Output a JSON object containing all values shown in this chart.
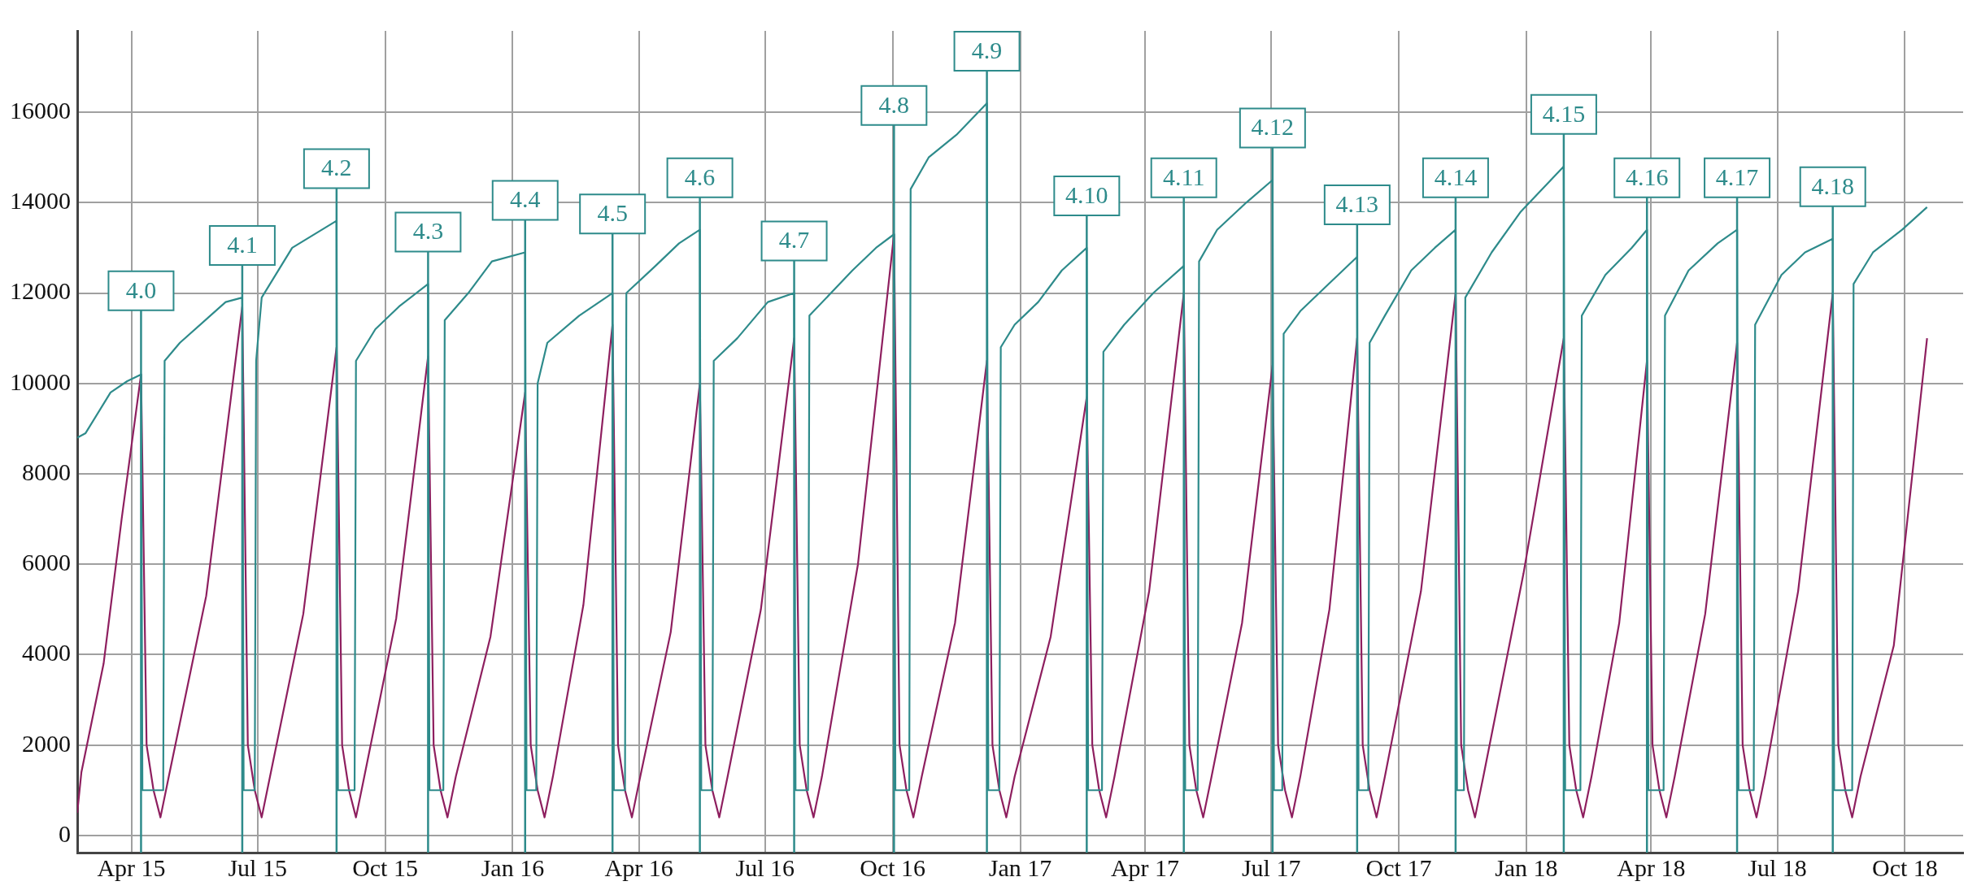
{
  "chart_data": {
    "type": "line",
    "xlim": [
      "2015-02-21",
      "2018-11-12"
    ],
    "ylim": [
      -380,
      17800
    ],
    "xticks": [
      {
        "value": "2015-04-01",
        "label": "Apr 15"
      },
      {
        "value": "2015-07-01",
        "label": "Jul 15"
      },
      {
        "value": "2015-10-01",
        "label": "Oct 15"
      },
      {
        "value": "2016-01-01",
        "label": "Jan 16"
      },
      {
        "value": "2016-04-01",
        "label": "Apr 16"
      },
      {
        "value": "2016-07-01",
        "label": "Jul 16"
      },
      {
        "value": "2016-10-01",
        "label": "Oct 16"
      },
      {
        "value": "2017-01-01",
        "label": "Jan 17"
      },
      {
        "value": "2017-04-01",
        "label": "Apr 17"
      },
      {
        "value": "2017-07-01",
        "label": "Jul 17"
      },
      {
        "value": "2017-10-01",
        "label": "Oct 17"
      },
      {
        "value": "2018-01-01",
        "label": "Jan 18"
      },
      {
        "value": "2018-04-01",
        "label": "Apr 18"
      },
      {
        "value": "2018-07-01",
        "label": "Jul 18"
      },
      {
        "value": "2018-10-01",
        "label": "Oct 18"
      }
    ],
    "yticks": [
      0,
      2000,
      4000,
      6000,
      8000,
      10000,
      12000,
      14000,
      16000
    ],
    "grid": true,
    "legend": false,
    "marker": "none",
    "series": [
      {
        "color": "#2e8b8b",
        "x": [
          "2015-02-21",
          "2015-02-27",
          "2015-03-17",
          "2015-03-29",
          "2015-04-08",
          "2015-04-09",
          "2015-04-24",
          "2015-04-25",
          "2015-05-06",
          "2015-06-08",
          "2015-06-20",
          "2015-06-21",
          "2015-06-29",
          "2015-06-30",
          "2015-07-04",
          "2015-07-26",
          "2015-08-27",
          "2015-08-28",
          "2015-09-09",
          "2015-09-10",
          "2015-09-24",
          "2015-10-11",
          "2015-11-01",
          "2015-11-02",
          "2015-11-12",
          "2015-11-13",
          "2015-11-30",
          "2015-12-17",
          "2016-01-10",
          "2016-01-11",
          "2016-01-18",
          "2016-01-19",
          "2016-01-26",
          "2016-02-18",
          "2016-03-13",
          "2016-03-14",
          "2016-03-22",
          "2016-03-23",
          "2016-04-13",
          "2016-04-30",
          "2016-05-15",
          "2016-05-16",
          "2016-05-24",
          "2016-05-25",
          "2016-06-11",
          "2016-07-03",
          "2016-07-22",
          "2016-07-23",
          "2016-08-01",
          "2016-08-02",
          "2016-09-02",
          "2016-09-19",
          "2016-10-02",
          "2016-10-03",
          "2016-10-13",
          "2016-10-14",
          "2016-10-27",
          "2016-11-16",
          "2016-12-08",
          "2016-12-09",
          "2016-12-17",
          "2016-12-18",
          "2016-12-28",
          "2017-01-14",
          "2017-01-31",
          "2017-02-18",
          "2017-02-19",
          "2017-03-01",
          "2017-03-02",
          "2017-03-17",
          "2017-04-07",
          "2017-04-29",
          "2017-04-30",
          "2017-05-09",
          "2017-05-10",
          "2017-05-23",
          "2017-06-13",
          "2017-07-02",
          "2017-07-03",
          "2017-07-09",
          "2017-07-10",
          "2017-07-22",
          "2017-08-08",
          "2017-09-01",
          "2017-09-02",
          "2017-09-09",
          "2017-09-10",
          "2017-09-21",
          "2017-10-10",
          "2017-10-27",
          "2017-11-11",
          "2017-11-12",
          "2017-11-17",
          "2017-11-18",
          "2017-12-07",
          "2017-12-28",
          "2018-01-28",
          "2018-01-29",
          "2018-02-09",
          "2018-02-10",
          "2018-02-27",
          "2018-03-18",
          "2018-03-29",
          "2018-03-30",
          "2018-04-10",
          "2018-04-11",
          "2018-04-28",
          "2018-05-19",
          "2018-06-02",
          "2018-06-03",
          "2018-06-14",
          "2018-06-15",
          "2018-07-04",
          "2018-07-21",
          "2018-08-10",
          "2018-08-11",
          "2018-08-24",
          "2018-08-25",
          "2018-09-08",
          "2018-09-29",
          "2018-10-17"
        ],
        "values": [
          8800,
          8900,
          9800,
          10050,
          10200,
          1000,
          1000,
          10500,
          10900,
          11800,
          11900,
          1000,
          1000,
          10500,
          11900,
          13000,
          13600,
          1000,
          1000,
          10500,
          11200,
          11700,
          12200,
          1000,
          1000,
          11400,
          12000,
          12700,
          12900,
          1000,
          1000,
          10000,
          10900,
          11500,
          12000,
          1000,
          1000,
          12000,
          12600,
          13100,
          13400,
          1000,
          1000,
          10500,
          11000,
          11800,
          12000,
          1000,
          1000,
          11500,
          12500,
          13000,
          13300,
          1000,
          1000,
          14300,
          15000,
          15500,
          16200,
          1000,
          1000,
          10800,
          11300,
          11800,
          12500,
          13000,
          1000,
          1000,
          10700,
          11300,
          12000,
          12600,
          1000,
          1000,
          12700,
          13400,
          14000,
          14500,
          1000,
          1000,
          11100,
          11600,
          12100,
          12800,
          1000,
          1000,
          10900,
          11500,
          12500,
          13000,
          13400,
          1000,
          1000,
          11900,
          12900,
          13800,
          14800,
          1000,
          1000,
          11500,
          12400,
          13000,
          13400,
          1000,
          1000,
          11500,
          12500,
          13100,
          13400,
          1000,
          1000,
          11300,
          12400,
          12900,
          13200,
          1000,
          1000,
          12200,
          12900,
          13400,
          13900
        ]
      },
      {
        "color": "#8e1f5f",
        "x": [
          "2015-02-21",
          "2015-02-24",
          "2015-03-12",
          "2015-03-25",
          "2015-04-08",
          "2015-04-12",
          "2015-04-17",
          "2015-04-22",
          "2015-04-28",
          "2015-05-25",
          "2015-06-20",
          "2015-06-24",
          "2015-06-29",
          "2015-07-04",
          "2015-07-10",
          "2015-08-03",
          "2015-08-27",
          "2015-08-31",
          "2015-09-05",
          "2015-09-10",
          "2015-09-16",
          "2015-10-09",
          "2015-11-01",
          "2015-11-05",
          "2015-11-10",
          "2015-11-15",
          "2015-11-21",
          "2015-12-16",
          "2016-01-10",
          "2016-01-14",
          "2016-01-19",
          "2016-01-24",
          "2016-01-30",
          "2016-02-21",
          "2016-03-13",
          "2016-03-17",
          "2016-03-22",
          "2016-03-27",
          "2016-04-02",
          "2016-04-24",
          "2016-05-15",
          "2016-05-19",
          "2016-05-24",
          "2016-05-29",
          "2016-06-04",
          "2016-06-28",
          "2016-07-22",
          "2016-07-26",
          "2016-07-31",
          "2016-08-05",
          "2016-08-11",
          "2016-09-06",
          "2016-10-02",
          "2016-10-06",
          "2016-10-11",
          "2016-10-16",
          "2016-10-22",
          "2016-11-15",
          "2016-12-08",
          "2016-12-12",
          "2016-12-17",
          "2016-12-22",
          "2016-12-28",
          "2017-01-23",
          "2017-02-18",
          "2017-02-22",
          "2017-02-27",
          "2017-03-04",
          "2017-03-10",
          "2017-04-04",
          "2017-04-29",
          "2017-05-03",
          "2017-05-08",
          "2017-05-13",
          "2017-05-19",
          "2017-06-10",
          "2017-07-02",
          "2017-07-06",
          "2017-07-11",
          "2017-07-16",
          "2017-07-22",
          "2017-08-12",
          "2017-09-01",
          "2017-09-05",
          "2017-09-10",
          "2017-09-15",
          "2017-09-21",
          "2017-10-17",
          "2017-11-11",
          "2017-11-15",
          "2017-11-20",
          "2017-11-25",
          "2017-12-01",
          "2017-12-30",
          "2018-01-28",
          "2018-02-01",
          "2018-02-06",
          "2018-02-11",
          "2018-02-17",
          "2018-03-09",
          "2018-03-29",
          "2018-04-02",
          "2018-04-07",
          "2018-04-12",
          "2018-04-18",
          "2018-05-10",
          "2018-06-02",
          "2018-06-06",
          "2018-06-11",
          "2018-06-16",
          "2018-06-22",
          "2018-07-16",
          "2018-08-10",
          "2018-08-14",
          "2018-08-19",
          "2018-08-24",
          "2018-08-30",
          "2018-09-23",
          "2018-10-17"
        ],
        "values": [
          500,
          1400,
          3800,
          7000,
          10200,
          2000,
          1000,
          400,
          1300,
          5300,
          11700,
          2000,
          1000,
          400,
          1300,
          4900,
          10800,
          2000,
          1000,
          400,
          1300,
          4800,
          10600,
          2000,
          1000,
          400,
          1300,
          4400,
          9800,
          2000,
          1000,
          400,
          1300,
          5100,
          11300,
          2000,
          1000,
          400,
          1300,
          4500,
          10000,
          2000,
          1000,
          400,
          1300,
          5000,
          11000,
          2000,
          1000,
          400,
          1300,
          6000,
          13300,
          2000,
          1000,
          400,
          1300,
          4700,
          10500,
          2000,
          1000,
          400,
          1300,
          4400,
          9700,
          2000,
          1000,
          400,
          1300,
          5400,
          12000,
          2000,
          1000,
          400,
          1300,
          4700,
          10400,
          2000,
          1000,
          400,
          1300,
          5000,
          11000,
          2000,
          1000,
          400,
          1300,
          5400,
          12000,
          2000,
          1000,
          400,
          1300,
          5800,
          11000,
          2000,
          1000,
          400,
          1300,
          4700,
          10500,
          2000,
          1000,
          400,
          1300,
          4900,
          10900,
          2000,
          1000,
          400,
          1300,
          5400,
          12000,
          2000,
          1000,
          400,
          1300,
          4200,
          11000
        ]
      }
    ],
    "ref_lines": [
      {
        "axis": "x",
        "value": "2015-04-08",
        "label": "4.0"
      },
      {
        "axis": "x",
        "value": "2015-06-20",
        "label": "4.1"
      },
      {
        "axis": "x",
        "value": "2015-08-27",
        "label": "4.2"
      },
      {
        "axis": "x",
        "value": "2015-11-01",
        "label": "4.3"
      },
      {
        "axis": "x",
        "value": "2016-01-10",
        "label": "4.4"
      },
      {
        "axis": "x",
        "value": "2016-03-13",
        "label": "4.5"
      },
      {
        "axis": "x",
        "value": "2016-05-15",
        "label": "4.6"
      },
      {
        "axis": "x",
        "value": "2016-07-22",
        "label": "4.7"
      },
      {
        "axis": "x",
        "value": "2016-10-02",
        "label": "4.8"
      },
      {
        "axis": "x",
        "value": "2016-12-08",
        "label": "4.9"
      },
      {
        "axis": "x",
        "value": "2017-02-18",
        "label": "4.10"
      },
      {
        "axis": "x",
        "value": "2017-04-29",
        "label": "4.11"
      },
      {
        "axis": "x",
        "value": "2017-07-02",
        "label": "4.12"
      },
      {
        "axis": "x",
        "value": "2017-09-01",
        "label": "4.13"
      },
      {
        "axis": "x",
        "value": "2017-11-11",
        "label": "4.14"
      },
      {
        "axis": "x",
        "value": "2018-01-28",
        "label": "4.15"
      },
      {
        "axis": "x",
        "value": "2018-03-29",
        "label": "4.16"
      },
      {
        "axis": "x",
        "value": "2018-06-02",
        "label": "4.17"
      },
      {
        "axis": "x",
        "value": "2018-08-10",
        "label": "4.18"
      }
    ]
  }
}
